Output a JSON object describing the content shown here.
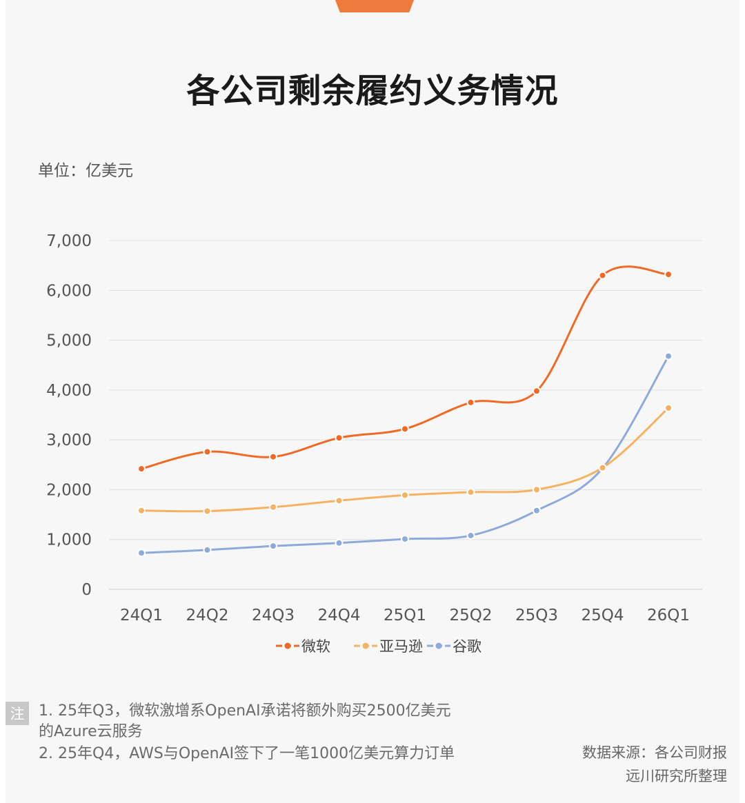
{
  "title": "各公司剩余履约义务情况",
  "unit": "单位：亿美元",
  "notes": {
    "tag": "注",
    "line1": "1. 25年Q3，微软激增系OpenAI承诺将额外购买2500亿美元",
    "line1b": "的Azure云服务",
    "line2": "2. 25年Q4，AWS与OpenAI签下了一笔1000亿美元算力订单"
  },
  "source": {
    "line1": "数据来源：各公司财报",
    "line2": "远川研究所整理"
  },
  "chart_data": {
    "type": "line",
    "categories": [
      "24Q1",
      "24Q2",
      "24Q3",
      "24Q4",
      "25Q1",
      "25Q2",
      "25Q3",
      "25Q4",
      "26Q1"
    ],
    "yticks": [
      "0",
      "1,000",
      "2,000",
      "3,000",
      "4,000",
      "5,000",
      "6,000",
      "7,000"
    ],
    "ylim": [
      0,
      7000
    ],
    "grid": true,
    "legend_position": "bottom",
    "series": [
      {
        "name": "微软",
        "color": "#f06a26",
        "values": [
          2420,
          2760,
          2660,
          3040,
          3220,
          3750,
          3980,
          6300,
          6320
        ]
      },
      {
        "name": "亚马逊",
        "color": "#f7b261",
        "values": [
          1580,
          1570,
          1650,
          1780,
          1890,
          1950,
          2000,
          2440,
          3640
        ]
      },
      {
        "name": "谷歌",
        "color": "#8eaadb",
        "values": [
          730,
          790,
          870,
          930,
          1010,
          1080,
          1580,
          2430,
          4680
        ]
      }
    ]
  }
}
